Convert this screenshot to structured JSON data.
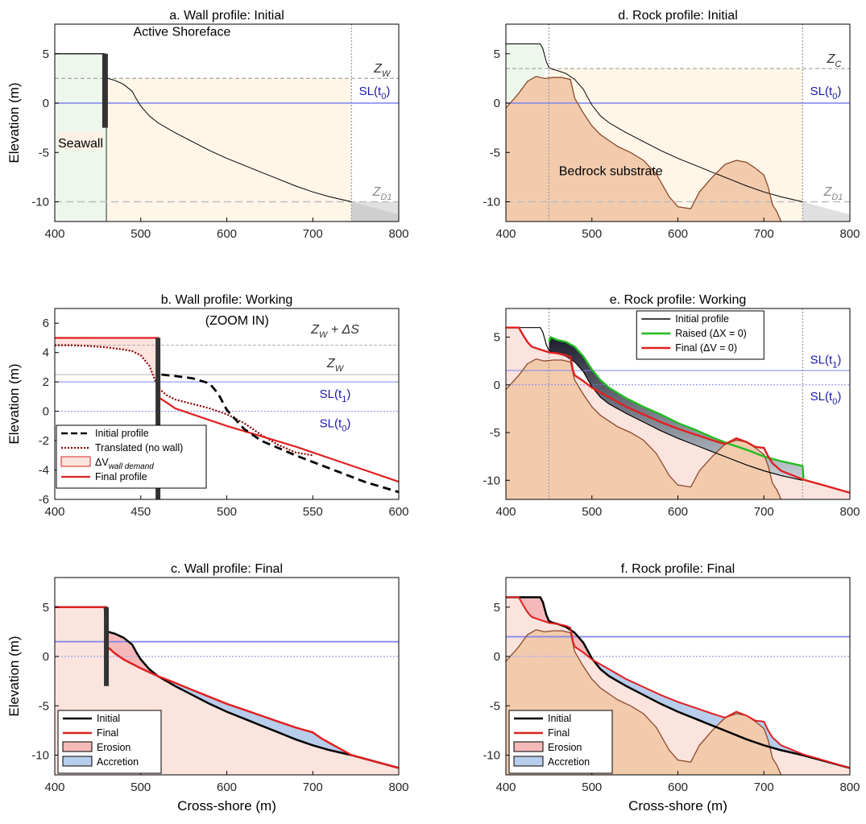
{
  "chart_data": [
    {
      "id": "a",
      "type": "line",
      "title": "a. Wall profile: Initial",
      "ylabel": "Elevation (m)",
      "xlabel": "",
      "xlim": [
        400,
        800
      ],
      "ylim": [
        -12,
        8
      ],
      "xticks": [
        400,
        500,
        600,
        700,
        800
      ],
      "yticks": [
        -10,
        -5,
        0,
        5
      ],
      "annotations": {
        "shoreface": "Active Shoreface",
        "seawall": "Seawall",
        "zw": "Z",
        "zw_sub": "W",
        "sl": "SL(t",
        "sl_sub": "0",
        "sl_end": ")",
        "zd": "Z",
        "zd_sub": "D1"
      },
      "series": [
        {
          "role": "initial",
          "color": "#000000",
          "x": [
            400,
            458,
            460,
            462,
            470,
            480,
            490,
            495,
            500,
            510,
            520,
            540,
            560,
            580,
            600,
            620,
            640,
            660,
            680,
            700,
            720,
            745
          ],
          "y": [
            5,
            5,
            2.5,
            2.5,
            2.3,
            1.9,
            1.2,
            0.4,
            -0.3,
            -1.3,
            -2.0,
            -3.0,
            -3.9,
            -4.8,
            -5.6,
            -6.3,
            -7.0,
            -7.7,
            -8.4,
            -9.0,
            -9.5,
            -10.0
          ]
        }
      ],
      "seawall": {
        "x": 460,
        "top": 5,
        "bottom": -2.5
      },
      "sea_level": 0,
      "z_w": 2.5,
      "z_d1": -10,
      "dc_x": 745
    },
    {
      "id": "b",
      "type": "line",
      "title": "b. Wall profile: Working",
      "ylabel": "Elevation (m)",
      "xlabel": "",
      "xlim": [
        400,
        600
      ],
      "ylim": [
        -6,
        7
      ],
      "xticks": [
        400,
        450,
        500,
        550,
        600
      ],
      "yticks": [
        -6,
        -4,
        -2,
        0,
        2,
        4,
        6
      ],
      "annotations": {
        "zoom": "(ZOOM IN)",
        "zws": "Z",
        "zws_sub": "W",
        "zws_end": " + ΔS",
        "zw": "Z",
        "zw_sub": "W",
        "sl1": "SL(t",
        "sl1_sub": "1",
        "sl0": "SL(t",
        "sl0_sub": "0",
        "sl_end": ")"
      },
      "legend": [
        "Initial profile",
        "Translated (no wall)",
        "ΔV",
        "wall demand",
        "Final profile"
      ],
      "series": [
        {
          "role": "initial",
          "color": "#000000",
          "x": [
            462,
            470,
            480,
            490,
            495,
            500,
            510,
            520,
            540,
            560,
            580,
            600
          ],
          "y": [
            2.5,
            2.4,
            2.25,
            1.9,
            1.2,
            0.1,
            -1.2,
            -2.0,
            -3.0,
            -3.9,
            -4.8,
            -5.5
          ]
        },
        {
          "role": "translated",
          "color": "#8b0000",
          "x": [
            400,
            410,
            420,
            430,
            440,
            445,
            450,
            455,
            460,
            465,
            470,
            480,
            490,
            500,
            510,
            520,
            530,
            540,
            550
          ],
          "y": [
            4.5,
            4.5,
            4.45,
            4.35,
            4.2,
            4.1,
            3.8,
            3.1,
            1.6,
            1.1,
            0.8,
            0.5,
            0.2,
            -0.2,
            -0.8,
            -1.6,
            -2.3,
            -2.8,
            -3.0
          ]
        },
        {
          "role": "final",
          "color": "#e02020",
          "x": [
            400,
            458,
            460,
            461,
            465,
            470,
            480,
            490,
            500,
            520,
            540,
            560,
            580,
            600
          ],
          "y": [
            5,
            5,
            5,
            0.9,
            0.6,
            0.2,
            -0.2,
            -0.6,
            -1.0,
            -1.7,
            -2.4,
            -3.2,
            -4.0,
            -4.8
          ]
        }
      ],
      "seawall": {
        "x": 460,
        "top": 5,
        "bottom": -6
      },
      "sl0": 0,
      "sl1": 2,
      "z_w": 2.5,
      "z_w_ds": 4.5
    },
    {
      "id": "c",
      "type": "area",
      "title": "c. Wall profile: Final",
      "ylabel": "Elevation (m)",
      "xlabel": "Cross-shore (m)",
      "xlim": [
        400,
        800
      ],
      "ylim": [
        -12,
        8
      ],
      "xticks": [
        400,
        500,
        600,
        700,
        800
      ],
      "yticks": [
        -10,
        -5,
        0,
        5
      ],
      "legend": [
        "Initial",
        "Final",
        "Erosion",
        "Accretion"
      ],
      "series": [
        {
          "role": "initial",
          "color": "#000000",
          "x": [
            400,
            458,
            460,
            462,
            470,
            480,
            490,
            495,
            500,
            510,
            520,
            540,
            560,
            580,
            600,
            620,
            640,
            660,
            680,
            700,
            720,
            745,
            800
          ],
          "y": [
            5,
            5,
            2.5,
            2.5,
            2.3,
            1.9,
            1.2,
            0.4,
            -0.3,
            -1.3,
            -2.0,
            -3.0,
            -3.9,
            -4.8,
            -5.6,
            -6.3,
            -7.0,
            -7.7,
            -8.4,
            -9.0,
            -9.5,
            -10.0,
            -11.3
          ]
        },
        {
          "role": "final",
          "color": "#e02020",
          "x": [
            400,
            458,
            460,
            461,
            470,
            480,
            500,
            520,
            535,
            560,
            580,
            600,
            620,
            640,
            660,
            680,
            700,
            710,
            745,
            800
          ],
          "y": [
            5,
            5,
            5,
            1.0,
            0.3,
            -0.3,
            -1.2,
            -2.0,
            -2.5,
            -3.4,
            -4.1,
            -4.8,
            -5.4,
            -6.0,
            -6.6,
            -7.2,
            -7.7,
            -8.3,
            -10.0,
            -11.3
          ]
        }
      ],
      "seawall": {
        "x": 460,
        "top": 5,
        "bottom": -3
      },
      "sl0": 0,
      "sl1": 1.5
    },
    {
      "id": "d",
      "type": "line",
      "title": "d. Rock profile: Initial",
      "ylabel": "",
      "xlabel": "",
      "xlim": [
        400,
        800
      ],
      "ylim": [
        -12,
        8
      ],
      "xticks": [
        400,
        500,
        600,
        700,
        800
      ],
      "yticks": [
        -10,
        -5,
        0,
        5
      ],
      "annotations": {
        "bedrock": "Bedrock substrate",
        "zc": "Z",
        "zc_sub": "C",
        "sl": "SL(t",
        "sl_sub": "0",
        "sl_end": ")",
        "zd": "Z",
        "zd_sub": "D1"
      },
      "series": [
        {
          "role": "initial",
          "color": "#000000",
          "x": [
            400,
            440,
            443,
            447,
            450,
            455,
            460,
            470,
            480,
            490,
            495,
            500,
            510,
            520,
            540,
            560,
            580,
            600,
            620,
            640,
            660,
            680,
            700,
            720,
            745
          ],
          "y": [
            6,
            6,
            5.5,
            4.2,
            3.6,
            3.4,
            3.3,
            3.0,
            2.4,
            1.4,
            0.6,
            -0.2,
            -1.3,
            -2.0,
            -3.0,
            -3.9,
            -4.8,
            -5.6,
            -6.3,
            -7.0,
            -7.7,
            -8.4,
            -9.0,
            -9.5,
            -10.0
          ]
        },
        {
          "role": "bedrock",
          "color": "#8b4a2b",
          "x": [
            400,
            405,
            415,
            425,
            435,
            445,
            455,
            465,
            475,
            480,
            490,
            500,
            510,
            520,
            530,
            545,
            560,
            575,
            590,
            600,
            615,
            625,
            640,
            655,
            668,
            680,
            690,
            700,
            705,
            710,
            715,
            720
          ],
          "y": [
            -0.5,
            0,
            1,
            2.2,
            2.7,
            2.5,
            2.6,
            2.6,
            2.4,
            0.5,
            -1.0,
            -2.3,
            -3.2,
            -3.8,
            -4.4,
            -5.0,
            -5.8,
            -7.2,
            -9.5,
            -10.5,
            -10.7,
            -9.0,
            -7.5,
            -6.2,
            -5.8,
            -6.0,
            -6.6,
            -7.3,
            -8.5,
            -10.3,
            -11.0,
            -12.0
          ]
        }
      ],
      "sea_level": 0,
      "z_c": 3.5,
      "z_d1": -10,
      "dc_x": 745,
      "crest_x": 450
    },
    {
      "id": "e",
      "type": "line",
      "title": "e. Rock profile: Working",
      "ylabel": "",
      "xlabel": "",
      "xlim": [
        400,
        800
      ],
      "ylim": [
        -12,
        8
      ],
      "xticks": [
        400,
        500,
        600,
        700,
        800
      ],
      "yticks": [
        -10,
        -5,
        0,
        5
      ],
      "annotations": {
        "sl1": "SL(t",
        "sl1_sub": "1",
        "sl0": "SL(t",
        "sl0_sub": "0",
        "sl_end": ")"
      },
      "legend": [
        "Initial profile",
        "Raised (ΔX = 0)",
        "Final (ΔV = 0)"
      ],
      "series": [
        {
          "role": "initial",
          "color": "#000000",
          "x": [
            400,
            440,
            443,
            447,
            450,
            455,
            460,
            470,
            480,
            490,
            495,
            500,
            510,
            520,
            540,
            560,
            580,
            600,
            620,
            640,
            660,
            680,
            700,
            720,
            745
          ],
          "y": [
            6,
            6,
            5.5,
            4.2,
            3.6,
            3.4,
            3.3,
            3.0,
            2.4,
            1.4,
            0.6,
            -0.2,
            -1.3,
            -2.0,
            -3.0,
            -3.9,
            -4.8,
            -5.6,
            -6.3,
            -7.0,
            -7.7,
            -8.4,
            -9.0,
            -9.5,
            -10.0
          ]
        },
        {
          "role": "raised",
          "color": "#22bb22",
          "x": [
            450,
            452,
            460,
            470,
            480,
            490,
            500,
            510,
            520,
            540,
            560,
            580,
            600,
            620,
            640,
            660,
            680,
            700,
            720,
            745,
            746
          ],
          "y": [
            4.5,
            5,
            4.7,
            4.5,
            4.0,
            3.0,
            1.6,
            0.5,
            -0.3,
            -1.4,
            -2.3,
            -3.1,
            -4.0,
            -4.7,
            -5.5,
            -6.2,
            -6.8,
            -7.5,
            -8.0,
            -8.5,
            -9.8
          ]
        },
        {
          "role": "final",
          "color": "#e02020",
          "x": [
            400,
            415,
            420,
            425,
            430,
            440,
            447,
            450,
            460,
            470,
            475,
            478,
            480,
            490,
            500,
            520,
            540,
            560,
            580,
            600,
            620,
            640,
            655,
            668,
            680,
            690,
            700,
            705,
            710,
            720,
            745,
            800
          ],
          "y": [
            6,
            6,
            5.2,
            4.5,
            4.0,
            3.7,
            3.5,
            3.4,
            3.3,
            3.1,
            2.9,
            1.5,
            1.0,
            0.4,
            -0.3,
            -1.3,
            -2.3,
            -3.1,
            -3.9,
            -4.6,
            -5.2,
            -5.8,
            -6.2,
            -5.6,
            -6.0,
            -6.5,
            -6.6,
            -7.5,
            -8.2,
            -9.0,
            -9.9,
            -11.3
          ]
        },
        {
          "role": "bedrock",
          "color": "#8b4a2b",
          "x": [
            400,
            405,
            415,
            425,
            435,
            445,
            455,
            465,
            475,
            480,
            490,
            500,
            510,
            520,
            530,
            545,
            560,
            575,
            590,
            600,
            615,
            625,
            640,
            655,
            668,
            680,
            690,
            700,
            705,
            710,
            715,
            720
          ],
          "y": [
            -0.5,
            0,
            1,
            2.2,
            2.7,
            2.5,
            2.6,
            2.6,
            2.4,
            0.5,
            -1.0,
            -2.3,
            -3.2,
            -3.8,
            -4.4,
            -5.0,
            -5.8,
            -7.2,
            -9.5,
            -10.5,
            -10.7,
            -9.0,
            -7.5,
            -6.2,
            -5.8,
            -6.0,
            -6.6,
            -7.3,
            -8.5,
            -10.3,
            -11.0,
            -12.0
          ]
        }
      ],
      "sl0": 0,
      "sl1": 1.5,
      "crest_x": 450,
      "dc_x": 745
    },
    {
      "id": "f",
      "type": "area",
      "title": "f. Rock profile: Final",
      "ylabel": "",
      "xlabel": "Cross-shore (m)",
      "xlim": [
        400,
        800
      ],
      "ylim": [
        -12,
        8
      ],
      "xticks": [
        400,
        500,
        600,
        700,
        800
      ],
      "yticks": [
        -10,
        -5,
        0,
        5
      ],
      "legend": [
        "Initial",
        "Final",
        "Erosion",
        "Accretion"
      ],
      "series": [
        {
          "role": "initial",
          "color": "#000000",
          "x": [
            400,
            440,
            443,
            447,
            450,
            455,
            460,
            470,
            480,
            490,
            495,
            500,
            510,
            520,
            540,
            560,
            580,
            600,
            620,
            640,
            660,
            680,
            700,
            720,
            745,
            800
          ],
          "y": [
            6,
            6,
            5.5,
            4.2,
            3.6,
            3.4,
            3.3,
            3.0,
            2.4,
            1.4,
            0.6,
            -0.2,
            -1.3,
            -2.0,
            -3.0,
            -3.9,
            -4.8,
            -5.6,
            -6.3,
            -7.0,
            -7.7,
            -8.4,
            -9.0,
            -9.5,
            -10.0,
            -11.3
          ]
        },
        {
          "role": "final",
          "color": "#e02020",
          "x": [
            400,
            415,
            420,
            425,
            430,
            440,
            447,
            450,
            460,
            470,
            475,
            478,
            480,
            490,
            500,
            520,
            540,
            560,
            580,
            600,
            620,
            640,
            655,
            668,
            680,
            690,
            700,
            705,
            710,
            720,
            745,
            800
          ],
          "y": [
            6,
            6,
            5.2,
            4.5,
            4.0,
            3.7,
            3.5,
            3.4,
            3.3,
            3.1,
            2.9,
            1.5,
            1.0,
            0.4,
            -0.3,
            -1.3,
            -2.3,
            -3.1,
            -3.9,
            -4.6,
            -5.2,
            -5.8,
            -6.2,
            -5.6,
            -6.0,
            -6.5,
            -6.6,
            -7.5,
            -8.2,
            -9.0,
            -9.9,
            -11.3
          ]
        },
        {
          "role": "bedrock",
          "color": "#8b4a2b",
          "x": [
            400,
            405,
            415,
            425,
            435,
            445,
            455,
            465,
            475,
            480,
            490,
            500,
            510,
            520,
            530,
            545,
            560,
            575,
            590,
            600,
            615,
            625,
            640,
            655,
            668,
            680,
            690,
            700,
            705,
            710,
            715,
            720
          ],
          "y": [
            -0.5,
            0,
            1,
            2.2,
            2.7,
            2.5,
            2.6,
            2.6,
            2.4,
            0.5,
            -1.0,
            -2.3,
            -3.2,
            -3.8,
            -4.4,
            -5.0,
            -5.8,
            -7.2,
            -9.5,
            -10.5,
            -10.7,
            -9.0,
            -7.5,
            -6.2,
            -5.8,
            -6.0,
            -6.6,
            -7.3,
            -8.5,
            -10.3,
            -11.0,
            -12.0
          ]
        }
      ],
      "sl0": 0,
      "sl1": 2
    }
  ],
  "colors": {
    "sand": "#fff6e8",
    "land": "#eef7ec",
    "deep": "#e0e0e0",
    "erosion_fill": "#f6b9b9",
    "accretion_fill": "#b8cdeb",
    "final_pale": "#fbe3de",
    "rock": "#f2cbad",
    "rock_line": "#8b4a2b",
    "sea_level": "#7e84ee",
    "final": "#e02020",
    "raised": "#22bb22",
    "seawall": "#333333",
    "guide": "#a8a8a8"
  }
}
